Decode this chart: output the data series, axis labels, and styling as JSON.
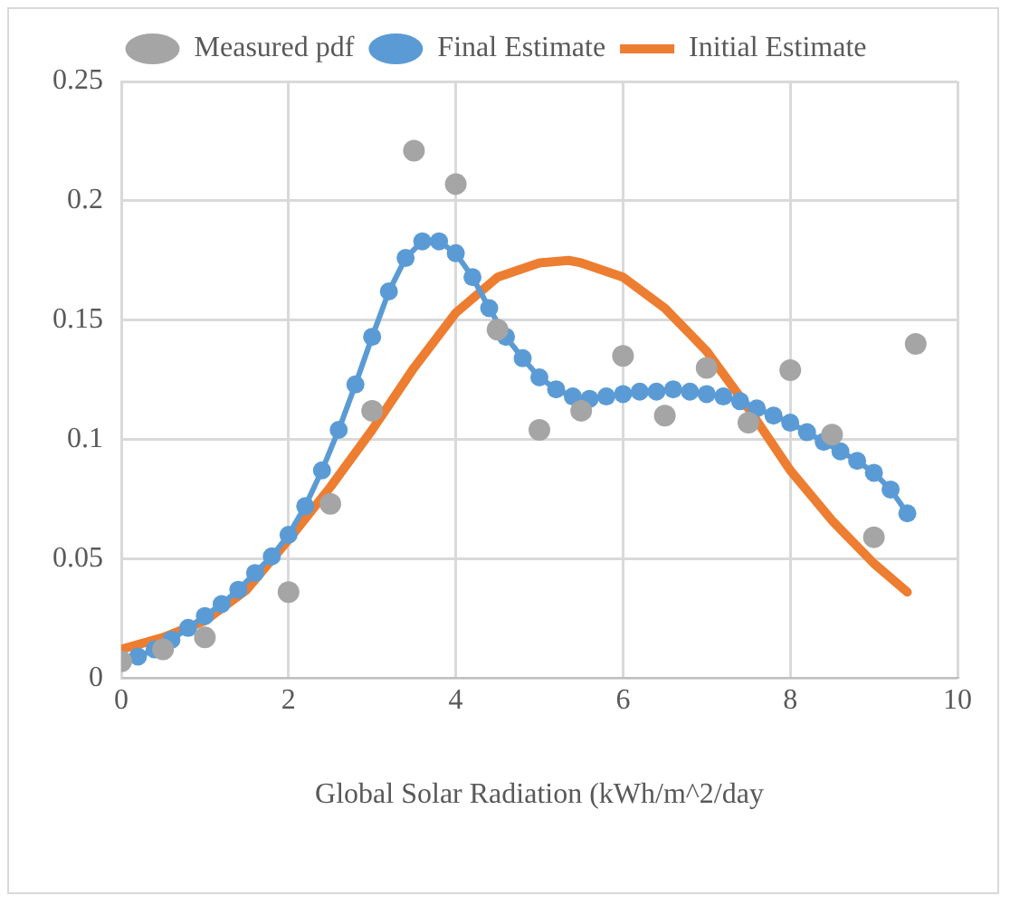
{
  "chart_data": {
    "type": "line",
    "xlabel": "Global Solar Radiation (kWh/m^2/day",
    "xlim": [
      0,
      10
    ],
    "xticks": [
      0,
      2,
      4,
      6,
      8,
      10
    ],
    "ylim": [
      0,
      0.25
    ],
    "yticks": [
      0,
      0.05,
      0.1,
      0.15,
      0.2,
      0.25
    ],
    "grid": true,
    "legend": "top",
    "series": [
      {
        "name": "Measured pdf",
        "type": "scatter",
        "marker": "circle",
        "color": "#a5a5a5",
        "x": [
          0,
          0.5,
          1,
          2,
          2.5,
          3,
          3.5,
          4,
          4.5,
          5,
          5.5,
          6,
          6.5,
          7,
          7.5,
          8,
          8.5,
          9,
          9.5
        ],
        "values": [
          0.007,
          0.012,
          0.017,
          0.036,
          0.073,
          0.112,
          0.221,
          0.207,
          0.146,
          0.104,
          0.112,
          0.135,
          0.11,
          0.13,
          0.107,
          0.129,
          0.102,
          0.059,
          0.14
        ]
      },
      {
        "name": "Final Estimate",
        "marker": "circle",
        "color": "#5b9bd5",
        "x": [
          0,
          0.2,
          0.4,
          0.6,
          0.8,
          1,
          1.2,
          1.4,
          1.6,
          1.8,
          2,
          2.2,
          2.4,
          2.6,
          2.8,
          3,
          3.2,
          3.4,
          3.6,
          3.8,
          4,
          4.2,
          4.4,
          4.6,
          4.8,
          5,
          5.2,
          5.4,
          5.6,
          5.8,
          6,
          6.2,
          6.4,
          6.6,
          6.8,
          7,
          7.2,
          7.4,
          7.6,
          7.8,
          8,
          8.2,
          8.4,
          8.6,
          8.8,
          9,
          9.2,
          9.4
        ],
        "values": [
          0.007,
          0.009,
          0.012,
          0.016,
          0.021,
          0.026,
          0.031,
          0.037,
          0.044,
          0.051,
          0.06,
          0.072,
          0.087,
          0.104,
          0.123,
          0.143,
          0.162,
          0.176,
          0.183,
          0.183,
          0.178,
          0.168,
          0.155,
          0.143,
          0.134,
          0.126,
          0.121,
          0.118,
          0.117,
          0.118,
          0.119,
          0.12,
          0.12,
          0.121,
          0.12,
          0.119,
          0.118,
          0.116,
          0.113,
          0.11,
          0.107,
          0.103,
          0.099,
          0.095,
          0.091,
          0.086,
          0.079,
          0.069
        ]
      },
      {
        "name": "Initial Estimate",
        "marker": "none",
        "color": "#ed7d31",
        "x": [
          0,
          0.5,
          1,
          1.5,
          2,
          2.5,
          3,
          3.5,
          4,
          4.5,
          5,
          5.35,
          5.5,
          6,
          6.5,
          7,
          7.5,
          8,
          8.5,
          9,
          9.4
        ],
        "values": [
          0.012,
          0.017,
          0.024,
          0.037,
          0.058,
          0.08,
          0.104,
          0.13,
          0.153,
          0.168,
          0.174,
          0.175,
          0.174,
          0.168,
          0.155,
          0.137,
          0.113,
          0.087,
          0.066,
          0.048,
          0.036
        ]
      }
    ]
  }
}
